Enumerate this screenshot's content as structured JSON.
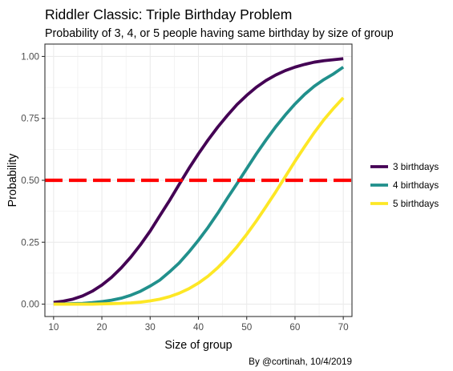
{
  "chart_data": {
    "type": "line",
    "title": "Riddler Classic: Triple Birthday Problem",
    "subtitle": "Probability of 3, 4, or 5 people having same birthday by size of group",
    "xlabel": "Size of group",
    "ylabel": "Probability",
    "caption": "By @cortinah, 10/4/2019",
    "xlim": [
      8.2,
      71.8
    ],
    "ylim": [
      -0.05,
      1.05
    ],
    "x_ticks": [
      10,
      20,
      30,
      40,
      50,
      60,
      70
    ],
    "x_tick_labels": [
      "10",
      "20",
      "30",
      "40",
      "50",
      "60",
      "70"
    ],
    "y_ticks": [
      0,
      0.25,
      0.5,
      0.75,
      1
    ],
    "y_tick_labels": [
      "0.00",
      "0.25",
      "0.50",
      "0.75",
      "1.00"
    ],
    "grid": true,
    "legend_position": "right",
    "x": [
      10,
      12,
      14,
      16,
      18,
      20,
      22,
      24,
      26,
      28,
      30,
      32,
      34,
      36,
      38,
      40,
      42,
      44,
      46,
      48,
      50,
      52,
      54,
      56,
      58,
      60,
      62,
      64,
      66,
      68,
      70
    ],
    "series": [
      {
        "name": "3 birthdays",
        "color": "#440154",
        "values": [
          0.007,
          0.012,
          0.02,
          0.033,
          0.052,
          0.077,
          0.108,
          0.146,
          0.19,
          0.24,
          0.295,
          0.357,
          0.418,
          0.483,
          0.547,
          0.607,
          0.663,
          0.715,
          0.762,
          0.806,
          0.843,
          0.876,
          0.903,
          0.925,
          0.943,
          0.957,
          0.968,
          0.977,
          0.983,
          0.987,
          0.991
        ]
      },
      {
        "name": "4 birthdays",
        "color": "#21908C",
        "values": [
          0.0,
          0.001,
          0.002,
          0.003,
          0.006,
          0.01,
          0.016,
          0.024,
          0.036,
          0.052,
          0.073,
          0.097,
          0.13,
          0.166,
          0.21,
          0.258,
          0.31,
          0.367,
          0.428,
          0.487,
          0.547,
          0.607,
          0.663,
          0.716,
          0.764,
          0.808,
          0.847,
          0.88,
          0.907,
          0.93,
          0.957
        ]
      },
      {
        "name": "5 birthdays",
        "color": "#FDE725",
        "values": [
          0.0,
          0.0,
          0.0,
          0.0,
          0.0,
          0.001,
          0.002,
          0.003,
          0.005,
          0.008,
          0.013,
          0.02,
          0.03,
          0.044,
          0.062,
          0.085,
          0.113,
          0.147,
          0.187,
          0.232,
          0.282,
          0.336,
          0.394,
          0.453,
          0.515,
          0.577,
          0.636,
          0.693,
          0.745,
          0.791,
          0.833
        ]
      }
    ],
    "reference_line": {
      "y": 0.5,
      "color": "#FF0000",
      "style": "dashed"
    }
  }
}
